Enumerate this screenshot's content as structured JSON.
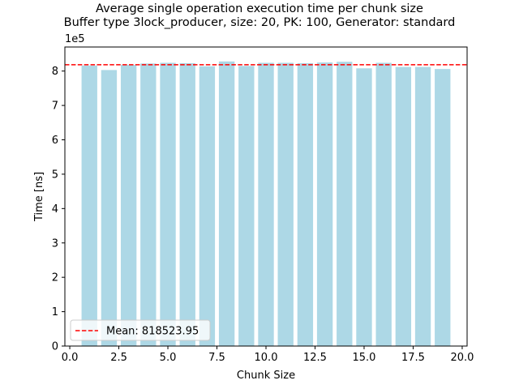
{
  "chart_data": {
    "type": "bar",
    "title": "Average single operation execution time per chunk size",
    "subtitle": "Buffer type 3lock_producer, size: 20, PK: 100, Generator: standard",
    "xlabel": "Chunk Size",
    "ylabel": "Time [ns]",
    "y_scale_label": "1e5",
    "y_scale": 100000,
    "xlim": [
      -0.25,
      20.25
    ],
    "ylim": [
      0,
      870000
    ],
    "x_ticks": [
      0.0,
      2.5,
      5.0,
      7.5,
      10.0,
      12.5,
      15.0,
      17.5,
      20.0
    ],
    "x_tick_labels": [
      "0.0",
      "2.5",
      "5.0",
      "7.5",
      "10.0",
      "12.5",
      "15.0",
      "17.5",
      "20.0"
    ],
    "y_ticks": [
      0,
      100000,
      200000,
      300000,
      400000,
      500000,
      600000,
      700000,
      800000
    ],
    "y_tick_labels": [
      "0",
      "1",
      "2",
      "3",
      "4",
      "5",
      "6",
      "7",
      "8"
    ],
    "x": [
      1,
      2,
      3,
      4,
      5,
      6,
      7,
      8,
      9,
      10,
      11,
      12,
      13,
      14,
      15,
      16,
      17,
      18,
      19
    ],
    "values": [
      816000,
      803000,
      818000,
      822000,
      824000,
      823000,
      814000,
      828000,
      815000,
      824000,
      824000,
      823000,
      825000,
      827000,
      808000,
      824000,
      812000,
      812000,
      806000
    ],
    "bar_color": "#add8e6",
    "mean": 818523.95,
    "mean_color": "#ff0000",
    "legend": {
      "label": "Mean: 818523.95",
      "placement": "lower left"
    },
    "grid": false
  }
}
